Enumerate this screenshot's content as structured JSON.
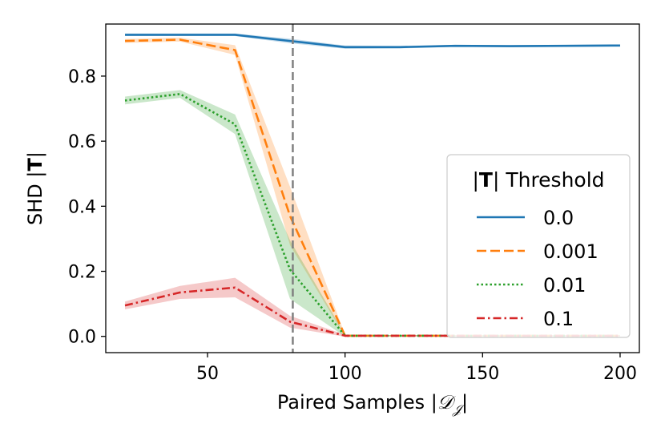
{
  "chart_data": {
    "type": "line",
    "title": "",
    "xlabel_prefix": "Paired Samples |",
    "xlabel_math": "𝒟",
    "xlabel_sub": "𝒥",
    "xlabel_suffix": "|",
    "ylabel_prefix": "SHD |",
    "ylabel_bold": "T",
    "ylabel_suffix": "|",
    "xlim": [
      13,
      207
    ],
    "ylim": [
      -0.05,
      0.96
    ],
    "xticks": [
      50,
      100,
      150,
      200
    ],
    "xtick_labels": [
      "50",
      "100",
      "150",
      "200"
    ],
    "yticks": [
      0.0,
      0.2,
      0.4,
      0.6,
      0.8
    ],
    "ytick_labels": [
      "0.0",
      "0.2",
      "0.4",
      "0.6",
      "0.8"
    ],
    "vline_x": 81,
    "legend_title_prefix": "|",
    "legend_title_bold": "T",
    "legend_title_suffix": "| Threshold",
    "legend_position": "center-right",
    "series": [
      {
        "name": "0.0",
        "color": "#1f77b4",
        "dash": "",
        "x": [
          20,
          40,
          60,
          80,
          100,
          120,
          140,
          160,
          180,
          200
        ],
        "y": [
          0.927,
          0.927,
          0.927,
          0.908,
          0.889,
          0.889,
          0.893,
          0.892,
          0.893,
          0.894
        ],
        "band": [
          0.004,
          0.004,
          0.004,
          0.007,
          0.005,
          0.004,
          0.003,
          0.003,
          0.003,
          0.003
        ]
      },
      {
        "name": "0.001",
        "color": "#ff7f0e",
        "dash": "12,5",
        "x": [
          20,
          40,
          60,
          80,
          100,
          120,
          140,
          160,
          180,
          200
        ],
        "y": [
          0.908,
          0.912,
          0.88,
          0.37,
          0.002,
          0.002,
          0.002,
          0.002,
          0.002,
          0.002
        ],
        "band": [
          0.006,
          0.006,
          0.015,
          0.09,
          0.003,
          0.002,
          0.002,
          0.002,
          0.002,
          0.002
        ]
      },
      {
        "name": "0.01",
        "color": "#2ca02c",
        "dash": "2.5,3",
        "x": [
          20,
          40,
          60,
          80,
          100,
          120,
          140,
          160,
          180,
          200
        ],
        "y": [
          0.725,
          0.745,
          0.652,
          0.205,
          0.002,
          0.002,
          0.002,
          0.002,
          0.002,
          0.002
        ],
        "band": [
          0.012,
          0.012,
          0.03,
          0.09,
          0.003,
          0.002,
          0.002,
          0.002,
          0.002,
          0.002
        ]
      },
      {
        "name": "0.1",
        "color": "#d62728",
        "dash": "10,4,2.5,4",
        "x": [
          20,
          40,
          60,
          80,
          100,
          120,
          140,
          160,
          180,
          200
        ],
        "y": [
          0.095,
          0.135,
          0.15,
          0.045,
          0.002,
          0.002,
          0.002,
          0.002,
          0.002,
          0.002
        ],
        "band": [
          0.012,
          0.02,
          0.03,
          0.018,
          0.003,
          0.002,
          0.002,
          0.002,
          0.002,
          0.002
        ]
      }
    ]
  }
}
